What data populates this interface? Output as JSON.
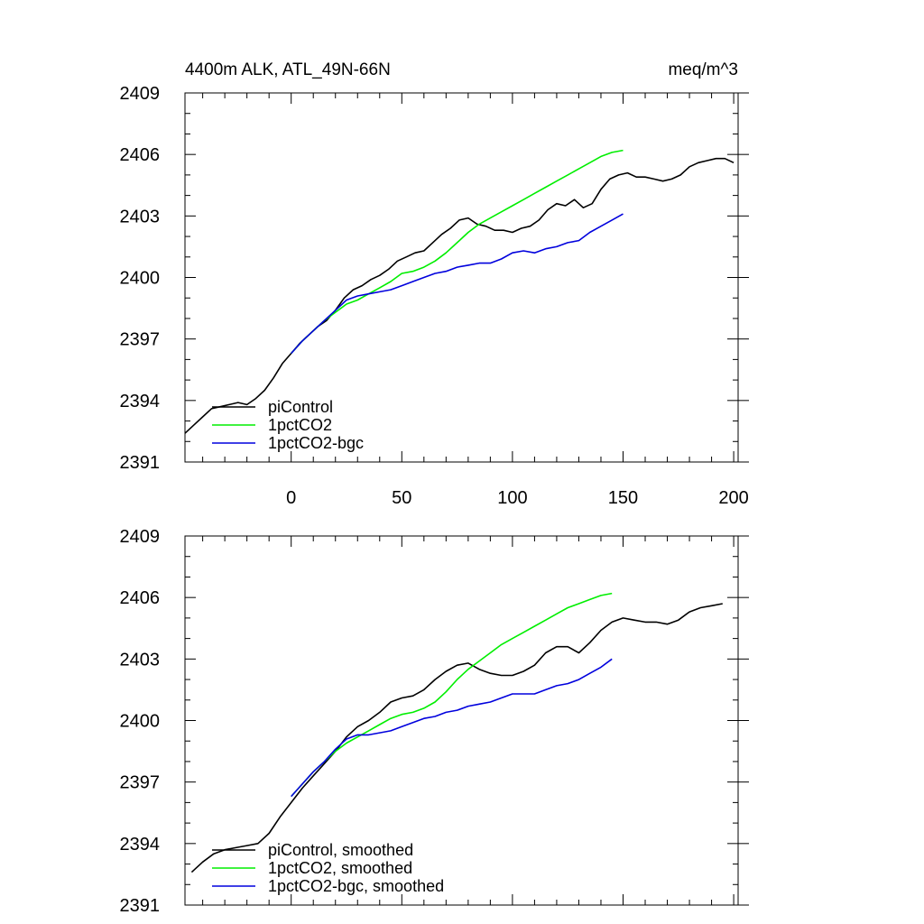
{
  "chart_data": [
    {
      "type": "line",
      "title": "4400m ALK, ATL_49N-66N",
      "units": "meq/m^3",
      "xlim": [
        -48,
        202
      ],
      "ylim": [
        2391,
        2409
      ],
      "xticks": [
        0,
        50,
        100,
        150,
        200
      ],
      "yticks": [
        2391,
        2394,
        2397,
        2400,
        2403,
        2406,
        2409
      ],
      "show_x_tick_labels": true,
      "grid": false,
      "legend_position": "bottom-left",
      "series": [
        {
          "name": "piControl",
          "color": "#000000",
          "x": [
            -48,
            -44,
            -40,
            -36,
            -32,
            -28,
            -24,
            -20,
            -16,
            -12,
            -8,
            -4,
            0,
            4,
            8,
            12,
            16,
            20,
            24,
            28,
            32,
            36,
            40,
            44,
            48,
            52,
            56,
            60,
            64,
            68,
            72,
            76,
            80,
            84,
            88,
            92,
            96,
            100,
            104,
            108,
            112,
            116,
            120,
            124,
            128,
            132,
            136,
            140,
            144,
            148,
            152,
            156,
            160,
            164,
            168,
            172,
            176,
            180,
            184,
            188,
            192,
            196,
            200
          ],
          "values": [
            2392.4,
            2392.8,
            2393.2,
            2393.6,
            2393.7,
            2393.8,
            2393.9,
            2393.8,
            2394.1,
            2394.5,
            2395.1,
            2395.8,
            2396.3,
            2396.8,
            2397.2,
            2397.6,
            2397.9,
            2398.4,
            2399.0,
            2399.4,
            2399.6,
            2399.9,
            2400.1,
            2400.4,
            2400.8,
            2401.0,
            2401.2,
            2401.3,
            2401.7,
            2402.1,
            2402.4,
            2402.8,
            2402.9,
            2402.6,
            2402.5,
            2402.3,
            2402.3,
            2402.2,
            2402.4,
            2402.5,
            2402.8,
            2403.3,
            2403.6,
            2403.5,
            2403.8,
            2403.4,
            2403.6,
            2404.3,
            2404.8,
            2405.0,
            2405.1,
            2404.9,
            2404.9,
            2404.8,
            2404.7,
            2404.8,
            2405.0,
            2405.4,
            2405.6,
            2405.7,
            2405.8,
            2405.8,
            2405.6
          ]
        },
        {
          "name": "1pctCO2",
          "color": "#00ee00",
          "x": [
            0,
            5,
            10,
            15,
            20,
            25,
            30,
            35,
            40,
            45,
            50,
            55,
            60,
            65,
            70,
            75,
            80,
            85,
            90,
            95,
            100,
            105,
            110,
            115,
            120,
            125,
            130,
            135,
            140,
            145,
            150
          ],
          "values": [
            2396.3,
            2396.9,
            2397.4,
            2397.9,
            2398.3,
            2398.7,
            2398.9,
            2399.2,
            2399.5,
            2399.8,
            2400.2,
            2400.3,
            2400.5,
            2400.8,
            2401.2,
            2401.7,
            2402.2,
            2402.6,
            2402.9,
            2403.2,
            2403.5,
            2403.8,
            2404.1,
            2404.4,
            2404.7,
            2405.0,
            2405.3,
            2405.6,
            2405.9,
            2406.1,
            2406.2
          ]
        },
        {
          "name": "1pctCO2-bgc",
          "color": "#0000dd",
          "x": [
            0,
            5,
            10,
            15,
            20,
            25,
            30,
            35,
            40,
            45,
            50,
            55,
            60,
            65,
            70,
            75,
            80,
            85,
            90,
            95,
            100,
            105,
            110,
            115,
            120,
            125,
            130,
            135,
            140,
            145,
            150
          ],
          "values": [
            2396.3,
            2396.9,
            2397.4,
            2397.9,
            2398.4,
            2398.9,
            2399.1,
            2399.2,
            2399.3,
            2399.4,
            2399.6,
            2399.8,
            2400.0,
            2400.2,
            2400.3,
            2400.5,
            2400.6,
            2400.7,
            2400.7,
            2400.9,
            2401.2,
            2401.3,
            2401.2,
            2401.4,
            2401.5,
            2401.7,
            2401.8,
            2402.2,
            2402.5,
            2402.8,
            2403.1
          ]
        }
      ]
    },
    {
      "type": "line",
      "title": "",
      "units": "",
      "xlim": [
        -48,
        202
      ],
      "ylim": [
        2391,
        2409
      ],
      "xticks": [
        0,
        50,
        100,
        150,
        200
      ],
      "yticks": [
        2391,
        2394,
        2397,
        2400,
        2403,
        2406,
        2409
      ],
      "show_x_tick_labels": false,
      "grid": false,
      "legend_position": "bottom-left",
      "series": [
        {
          "name": "piControl, smoothed",
          "color": "#000000",
          "x": [
            -45,
            -40,
            -35,
            -30,
            -25,
            -20,
            -15,
            -10,
            -5,
            0,
            5,
            10,
            15,
            20,
            25,
            30,
            35,
            40,
            45,
            50,
            55,
            60,
            65,
            70,
            75,
            80,
            85,
            90,
            95,
            100,
            105,
            110,
            115,
            120,
            125,
            130,
            135,
            140,
            145,
            150,
            155,
            160,
            165,
            170,
            175,
            180,
            185,
            190,
            195
          ],
          "values": [
            2392.6,
            2393.1,
            2393.5,
            2393.7,
            2393.8,
            2393.9,
            2394.0,
            2394.5,
            2395.3,
            2396.0,
            2396.7,
            2397.3,
            2397.9,
            2398.5,
            2399.2,
            2399.7,
            2400.0,
            2400.4,
            2400.9,
            2401.1,
            2401.2,
            2401.5,
            2402.0,
            2402.4,
            2402.7,
            2402.8,
            2402.5,
            2402.3,
            2402.2,
            2402.2,
            2402.4,
            2402.7,
            2403.3,
            2403.6,
            2403.6,
            2403.3,
            2403.8,
            2404.4,
            2404.8,
            2405.0,
            2404.9,
            2404.8,
            2404.8,
            2404.7,
            2404.9,
            2405.3,
            2405.5,
            2405.6,
            2405.7
          ]
        },
        {
          "name": "1pctCO2, smoothed",
          "color": "#00ee00",
          "x": [
            0,
            5,
            10,
            15,
            20,
            25,
            30,
            35,
            40,
            45,
            50,
            55,
            60,
            65,
            70,
            75,
            80,
            85,
            90,
            95,
            100,
            105,
            110,
            115,
            120,
            125,
            130,
            135,
            140,
            145
          ],
          "values": [
            2396.3,
            2396.9,
            2397.5,
            2398.0,
            2398.5,
            2398.9,
            2399.2,
            2399.5,
            2399.8,
            2400.1,
            2400.3,
            2400.4,
            2400.6,
            2400.9,
            2401.4,
            2402.0,
            2402.5,
            2402.9,
            2403.3,
            2403.7,
            2404.0,
            2404.3,
            2404.6,
            2404.9,
            2405.2,
            2405.5,
            2405.7,
            2405.9,
            2406.1,
            2406.2
          ]
        },
        {
          "name": "1pctCO2-bgc, smoothed",
          "color": "#0000dd",
          "x": [
            0,
            5,
            10,
            15,
            20,
            25,
            30,
            35,
            40,
            45,
            50,
            55,
            60,
            65,
            70,
            75,
            80,
            85,
            90,
            95,
            100,
            105,
            110,
            115,
            120,
            125,
            130,
            135,
            140,
            145
          ],
          "values": [
            2396.3,
            2396.9,
            2397.5,
            2398.0,
            2398.6,
            2399.1,
            2399.3,
            2399.3,
            2399.4,
            2399.5,
            2399.7,
            2399.9,
            2400.1,
            2400.2,
            2400.4,
            2400.5,
            2400.7,
            2400.8,
            2400.9,
            2401.1,
            2401.3,
            2401.3,
            2401.3,
            2401.5,
            2401.7,
            2401.8,
            2402.0,
            2402.3,
            2402.6,
            2403.0
          ]
        }
      ]
    }
  ]
}
